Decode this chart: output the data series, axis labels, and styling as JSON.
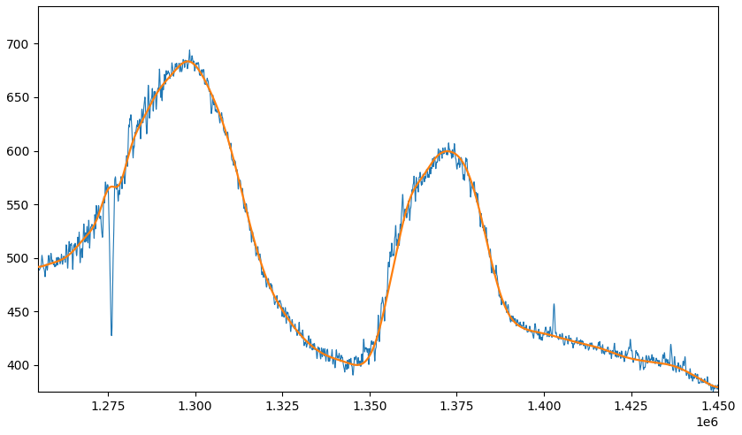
{
  "x_start": 1255000,
  "x_end": 1450000,
  "n_points": 3000,
  "blue_color": "#1f77b4",
  "orange_color": "#ff7f0e",
  "blue_linewidth": 0.8,
  "orange_linewidth": 1.6,
  "background_color": "#ffffff",
  "figsize": [
    8.39,
    4.92
  ],
  "dpi": 100,
  "xlim": [
    1255000,
    1450000
  ],
  "ylim": [
    375,
    735
  ],
  "smooth_keypoints_t": [
    0.0,
    0.02,
    0.05,
    0.07,
    0.09,
    0.11,
    0.115,
    0.13,
    0.155,
    0.175,
    0.195,
    0.22,
    0.25,
    0.28,
    0.3,
    0.33,
    0.36,
    0.39,
    0.42,
    0.455,
    0.49,
    0.505,
    0.515,
    0.525,
    0.535,
    0.545,
    0.565,
    0.585,
    0.605,
    0.625,
    0.645,
    0.665,
    0.685,
    0.71,
    0.74,
    0.77,
    0.8,
    0.83,
    0.86,
    0.9,
    0.94,
    0.97,
    1.0
  ],
  "smooth_keypoints_y": [
    490,
    495,
    505,
    520,
    540,
    570,
    560,
    590,
    630,
    655,
    670,
    685,
    660,
    610,
    560,
    490,
    450,
    425,
    410,
    402,
    410,
    440,
    470,
    500,
    530,
    555,
    575,
    595,
    600,
    590,
    555,
    500,
    455,
    435,
    430,
    425,
    420,
    415,
    408,
    403,
    398,
    388,
    378
  ]
}
